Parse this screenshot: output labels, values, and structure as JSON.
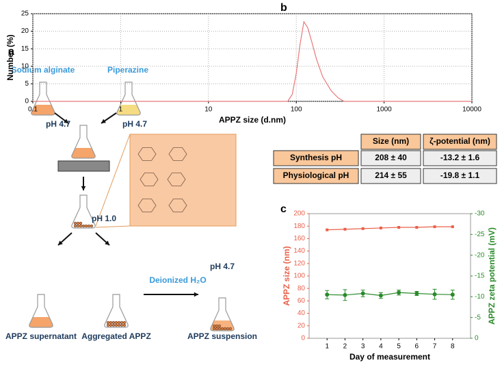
{
  "diagram": {
    "label": "a",
    "texts": [
      "Sodium alginate",
      "Piperazine",
      "pH 4.7",
      "pH 4.7",
      "pH 1.0",
      "Deionized H₂O",
      "pH 4.7",
      "APPZ supernatant",
      "Aggregated APPZ",
      "APPZ suspension"
    ]
  },
  "table": {
    "columns": [
      "Size (nm)",
      "ζ-potential (nm)"
    ],
    "rows": [
      [
        "Synthesis pH",
        "208 ± 40",
        "-13.2 ± 1.6"
      ],
      [
        "Physiological pH",
        "214 ± 55",
        "-19.8 ± 1.1"
      ]
    ]
  },
  "chart_data": [
    {
      "type": "line",
      "label": "b",
      "xlabel": "APPZ size (d.nm)",
      "ylabel": "Number (%)",
      "log_x": true,
      "grid": true,
      "xlim": [
        0.1,
        10000
      ],
      "xticks": [
        0.1,
        1,
        10,
        100,
        1000,
        10000
      ],
      "ylim": [
        0,
        25
      ],
      "yticks": [
        0,
        5,
        10,
        15,
        20,
        25
      ],
      "series": [
        {
          "color": "#e87878",
          "x": [
            0.1,
            80,
            90,
            100,
            110,
            122,
            135,
            150,
            170,
            200,
            250,
            300,
            350,
            10000
          ],
          "values": [
            0,
            0,
            2,
            8,
            16,
            22.7,
            21,
            17,
            12,
            7,
            3,
            1,
            0,
            0
          ]
        }
      ]
    },
    {
      "type": "line",
      "label": "c",
      "xlabel": "Day of measurement",
      "ylabel": "APPZ size (nm)",
      "y2label": "APPZ zeta potential (mV)",
      "xlim": [
        0,
        9
      ],
      "xticks": [
        1,
        2,
        3,
        4,
        5,
        6,
        7,
        8
      ],
      "ylim": [
        0,
        200
      ],
      "yticks": [
        0,
        20,
        40,
        60,
        80,
        100,
        120,
        140,
        160,
        180,
        200
      ],
      "y2lim": [
        0,
        -30
      ],
      "y2ticks": [
        0,
        -5,
        -10,
        -15,
        -20,
        -25,
        -30
      ],
      "series": [
        {
          "color": "#e8604a",
          "x": [
            1,
            2,
            3,
            4,
            5,
            6,
            7,
            8
          ],
          "values": [
            174,
            175,
            176,
            177,
            178,
            178,
            179,
            179
          ]
        },
        {
          "color": "#2a8a2a",
          "axis": "y2",
          "x": [
            1,
            2,
            3,
            4,
            5,
            6,
            7,
            8
          ],
          "values": [
            -10.5,
            -10.4,
            -10.8,
            -10.3,
            -11,
            -10.8,
            -10.6,
            -10.5
          ],
          "errors": [
            1,
            1.3,
            0.8,
            0.7,
            0.6,
            0.5,
            1.2,
            1.1
          ]
        }
      ]
    }
  ]
}
